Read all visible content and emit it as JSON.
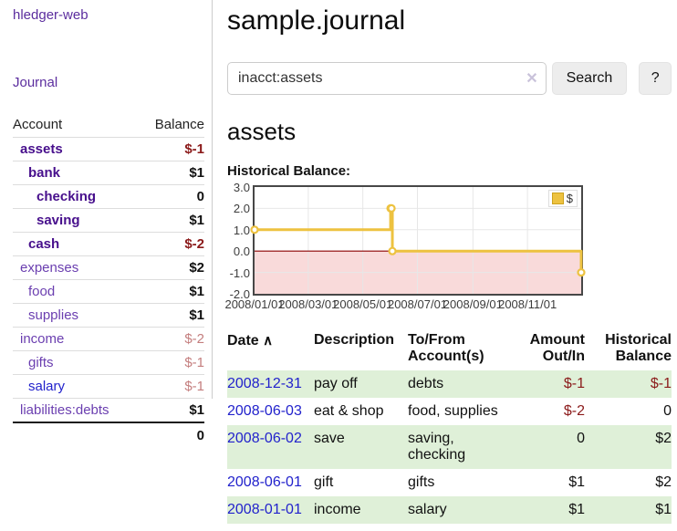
{
  "brand": "hledger-web",
  "nav": {
    "journal": "Journal"
  },
  "sidebar": {
    "header": {
      "account": "Account",
      "balance": "Balance"
    },
    "accounts": [
      {
        "name": "assets",
        "balance": "$-1"
      },
      {
        "name": "bank",
        "balance": "$1"
      },
      {
        "name": "checking",
        "balance": "0"
      },
      {
        "name": "saving",
        "balance": "$1"
      },
      {
        "name": "cash",
        "balance": "$-2"
      },
      {
        "name": "expenses",
        "balance": "$2"
      },
      {
        "name": "food",
        "balance": "$1"
      },
      {
        "name": "supplies",
        "balance": "$1"
      },
      {
        "name": "income",
        "balance": "$-2"
      },
      {
        "name": "gifts",
        "balance": "$-1"
      },
      {
        "name": "salary",
        "balance": "$-1"
      },
      {
        "name": "liabilities:debts",
        "balance": "$1"
      }
    ],
    "total": "0"
  },
  "main": {
    "title": "sample.journal",
    "search": {
      "value": "inacct:assets",
      "clear_icon": "✕",
      "search_button": "Search",
      "help_button": "?"
    },
    "account_heading": "assets",
    "chart_label": "Historical Balance:"
  },
  "chart_data": {
    "type": "line",
    "step": true,
    "title": "Historical Balance",
    "series": [
      {
        "name": "$",
        "color": "#edc240",
        "points": [
          [
            "2008-01-01",
            1
          ],
          [
            "2008-06-01",
            2
          ],
          [
            "2008-06-02",
            2
          ],
          [
            "2008-06-03",
            0
          ],
          [
            "2008-12-31",
            -1
          ]
        ]
      }
    ],
    "x_range": [
      "2008-01-01",
      "2008-12-31"
    ],
    "ylim": [
      -2,
      3
    ],
    "y_ticks": [
      {
        "label": "3.0",
        "value": 3
      },
      {
        "label": "2.0",
        "value": 2
      },
      {
        "label": "1.0",
        "value": 1
      },
      {
        "label": "0.0",
        "value": 0
      },
      {
        "label": "-1.0",
        "value": -1
      },
      {
        "label": "-2.0",
        "value": -2
      }
    ],
    "x_ticks": [
      {
        "label": "2008/01/01",
        "date": "2008-01-01"
      },
      {
        "label": "2008/03/01",
        "date": "2008-03-01"
      },
      {
        "label": "2008/05/01",
        "date": "2008-05-01"
      },
      {
        "label": "2008/07/01",
        "date": "2008-07-01"
      },
      {
        "label": "2008/09/01",
        "date": "2008-09-01"
      },
      {
        "label": "2008/11/01",
        "date": "2008-11-01"
      }
    ],
    "grid": true,
    "legend_position": "top-right",
    "negative_fill": "#f9dada",
    "zero_line_color": "#8b0000",
    "grid_color": "#e7e7e7"
  },
  "register": {
    "columns": [
      "Date",
      "Description",
      "To/From Account(s)",
      "Amount Out/In",
      "Historical Balance"
    ],
    "sort_icon": "∧",
    "rows": [
      {
        "date": "2008-12-31",
        "description": "pay off",
        "accounts": "debts",
        "amount": "$-1",
        "balance": "$-1"
      },
      {
        "date": "2008-06-03",
        "description": "eat & shop",
        "accounts": "food, supplies",
        "amount": "$-2",
        "balance": "0"
      },
      {
        "date": "2008-06-02",
        "description": "save",
        "accounts": "saving, checking",
        "amount": "0",
        "balance": "$2"
      },
      {
        "date": "2008-06-01",
        "description": "gift",
        "accounts": "gifts",
        "amount": "$1",
        "balance": "$2"
      },
      {
        "date": "2008-01-01",
        "description": "income",
        "accounts": "salary",
        "amount": "$1",
        "balance": "$1"
      }
    ]
  },
  "colors": {
    "link_purple": "#6b3fb0",
    "link_purple_bold": "#470f8c",
    "link_blue": "#2222cc",
    "negative_strong": "#8b1a1a",
    "negative_soft": "#c47e7e",
    "stripe_green": "#dff0d8",
    "series_gold": "#edc240"
  }
}
